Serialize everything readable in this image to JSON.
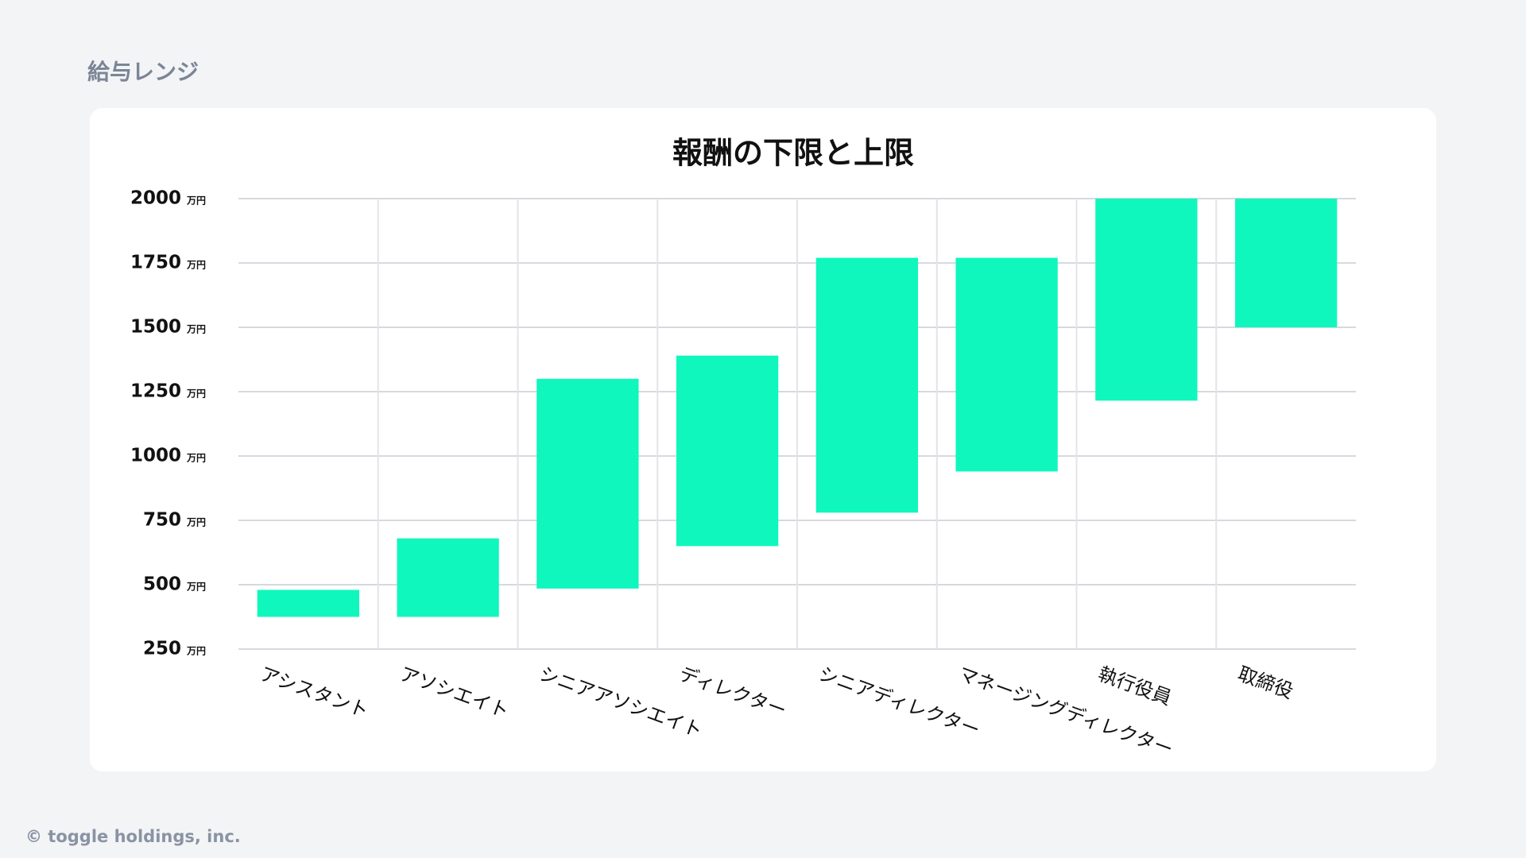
{
  "header": {
    "title": "給与レンジ"
  },
  "chart_data": {
    "type": "range_bar",
    "title": "報酬の下限と上限",
    "categories": [
      "アシスタント",
      "アソシエイト",
      "シニアアソシエイト",
      "ディレクター",
      "シニアディレクター",
      "マネージングディレクター",
      "執行役員",
      "取締役"
    ],
    "low": [
      375,
      375,
      485,
      650,
      780,
      940,
      1215,
      1500
    ],
    "high": [
      480,
      680,
      1300,
      1390,
      1770,
      1770,
      2000,
      2000
    ],
    "color": "#0ff7bd",
    "ylim": [
      250,
      2000
    ],
    "yticks": [
      250,
      500,
      750,
      1000,
      1250,
      1500,
      1750,
      2000
    ],
    "y_unit": "万円",
    "grid": true
  },
  "footer": {
    "copyright": "© toggle holdings, inc."
  }
}
